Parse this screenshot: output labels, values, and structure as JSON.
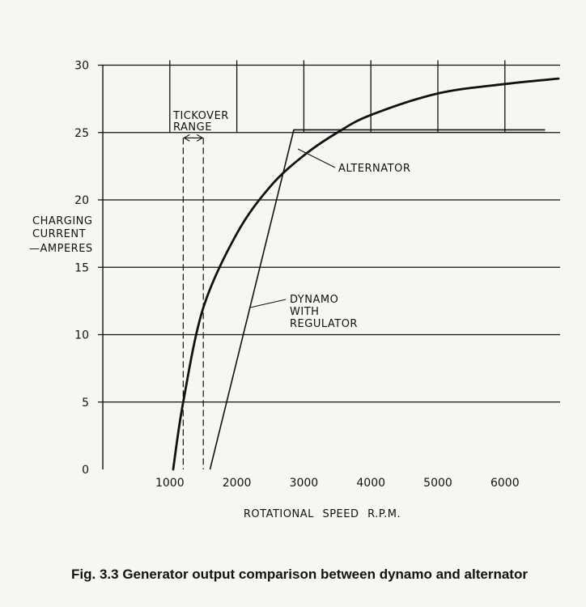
{
  "caption": "Fig. 3.3 Generator output comparison between dynamo and alternator",
  "chart_data": {
    "type": "line",
    "title": "",
    "xlabel": "ROTATIONAL SPEED R.P.M.",
    "ylabel_lines": [
      "CHARGING",
      "CURRENT",
      "—AMPERES"
    ],
    "xlim": [
      0,
      6800
    ],
    "ylim": [
      0,
      30
    ],
    "x_ticks": [
      1000,
      2000,
      3000,
      4000,
      5000,
      6000
    ],
    "y_ticks": [
      0,
      5,
      10,
      15,
      20,
      25,
      30
    ],
    "grid": "horizontal lines at each y tick; vertical lines at 1000-RPM intervals above y=25",
    "series": [
      {
        "name": "ALTERNATOR",
        "style": "thick",
        "x": [
          1050,
          1200,
          1500,
          2000,
          2500,
          3000,
          3500,
          4000,
          5000,
          6000,
          6800
        ],
        "y": [
          0,
          5,
          12,
          17.5,
          21,
          23.3,
          25,
          26.3,
          27.9,
          28.6,
          29
        ]
      },
      {
        "name": "DYNAMO WITH REGULATOR",
        "name_lines": [
          "DYNAMO",
          "WITH",
          "REGULATOR"
        ],
        "style": "thin",
        "x": [
          1600,
          2850,
          6600
        ],
        "y": [
          0,
          25.2,
          25.2
        ]
      }
    ],
    "annotations": [
      {
        "text_lines": [
          "TICKOVER",
          "RANGE"
        ],
        "x_range": [
          1200,
          1500
        ],
        "note": "dashed vertical lines with double arrow"
      }
    ]
  }
}
